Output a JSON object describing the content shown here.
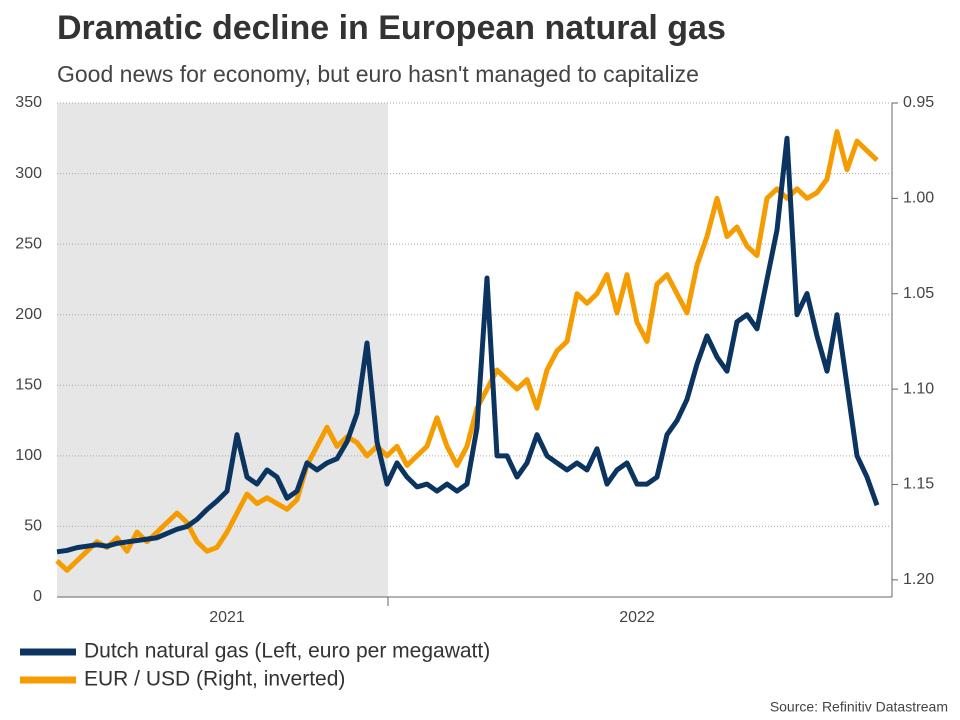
{
  "chart_data": {
    "type": "line",
    "title": "Dramatic decline in European natural gas",
    "subtitle": "Good news for economy, but euro hasn't managed to capitalize",
    "source": "Source: Refinitiv Datastream",
    "categories": [
      null,
      null,
      null,
      null,
      null,
      null,
      null,
      null,
      null,
      null,
      null,
      null,
      null,
      null,
      null,
      null,
      null,
      "2021",
      null,
      null,
      null,
      null,
      null,
      null,
      null,
      null,
      null,
      null,
      null,
      null,
      null,
      null,
      null,
      null,
      null,
      null,
      null,
      null,
      null,
      null,
      null,
      null,
      null,
      null,
      null,
      null,
      null,
      null,
      null,
      null,
      null,
      null,
      null,
      null,
      null,
      null,
      null,
      null,
      "2022",
      null,
      null,
      null,
      null,
      null,
      null,
      null,
      null,
      null,
      null,
      null,
      null,
      null,
      null,
      null,
      null,
      null,
      null,
      null,
      null,
      null,
      null,
      null,
      null
    ],
    "series": [
      {
        "name": "Dutch natural gas (Left, euro per megawatt)",
        "color": "#0c3461",
        "axis": "y",
        "values": [
          32,
          33,
          35,
          36,
          37,
          36,
          38,
          39,
          40,
          41,
          42,
          45,
          48,
          50,
          55,
          62,
          68,
          75,
          115,
          85,
          80,
          90,
          85,
          70,
          75,
          95,
          90,
          95,
          98,
          110,
          130,
          180,
          110,
          80,
          95,
          85,
          78,
          80,
          75,
          80,
          75,
          80,
          120,
          226,
          100,
          100,
          85,
          95,
          115,
          100,
          95,
          90,
          95,
          90,
          105,
          80,
          90,
          95,
          80,
          80,
          85,
          115,
          125,
          140,
          165,
          185,
          170,
          160,
          195,
          200,
          190,
          225,
          260,
          325,
          200,
          215,
          185,
          160,
          200,
          150,
          100,
          85,
          65
        ]
      },
      {
        "name": "EUR / USD (Right, inverted)",
        "color": "#f59c00",
        "axis": "y2",
        "values": [
          1.19,
          1.195,
          1.19,
          1.185,
          1.18,
          1.183,
          1.178,
          1.185,
          1.175,
          1.18,
          1.175,
          1.17,
          1.165,
          1.17,
          1.18,
          1.185,
          1.183,
          1.175,
          1.165,
          1.155,
          1.16,
          1.157,
          1.16,
          1.163,
          1.158,
          1.14,
          1.13,
          1.12,
          1.13,
          1.125,
          1.128,
          1.135,
          1.13,
          1.135,
          1.13,
          1.14,
          1.135,
          1.13,
          1.115,
          1.13,
          1.14,
          1.13,
          1.11,
          1.1,
          1.09,
          1.095,
          1.1,
          1.095,
          1.11,
          1.09,
          1.08,
          1.075,
          1.05,
          1.055,
          1.05,
          1.04,
          1.06,
          1.04,
          1.065,
          1.075,
          1.045,
          1.04,
          1.05,
          1.06,
          1.035,
          1.02,
          1.0,
          1.02,
          1.015,
          1.025,
          1.03,
          1.0,
          0.995,
          1.0,
          0.995,
          1.0,
          0.997,
          0.99,
          0.965,
          0.985,
          0.97,
          0.975,
          0.98
        ]
      }
    ],
    "ylim": [
      0,
      350
    ],
    "yticks": [
      0,
      50,
      100,
      150,
      200,
      250,
      300,
      350
    ],
    "y2lim": [
      0.95,
      1.209
    ],
    "y2_inverted": true,
    "y2ticks": [
      0.95,
      {
        "value": 1.0,
        "label": "1.00"
      },
      1.05,
      {
        "value": 1.1,
        "label": "1.10"
      },
      1.15,
      {
        "value": 1.2,
        "label": "1.20"
      }
    ],
    "grid": true
  }
}
